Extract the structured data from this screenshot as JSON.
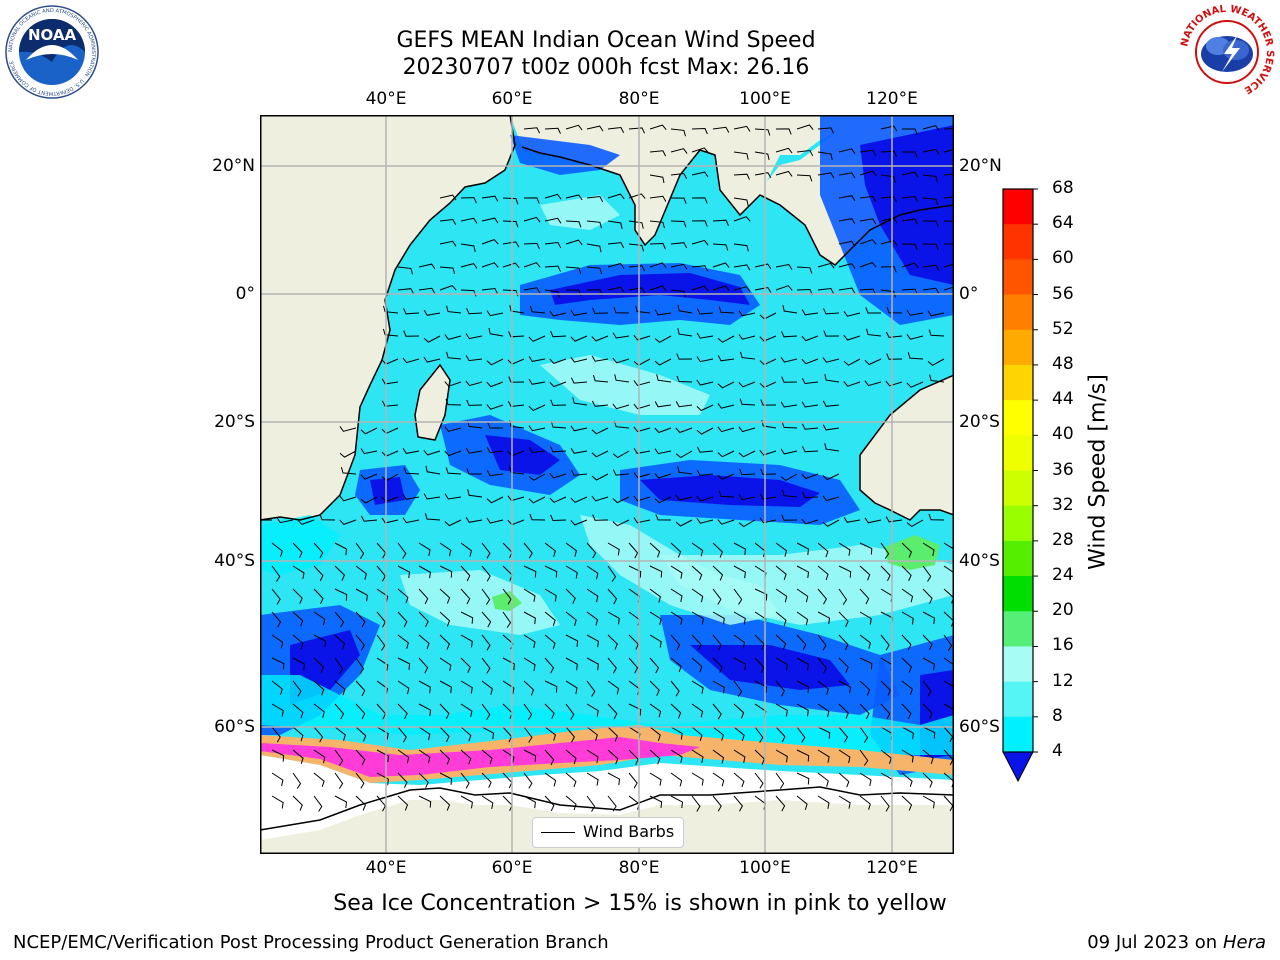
{
  "title": {
    "line1": "GEFS MEAN Indian Ocean Wind Speed",
    "line2": "20230707 t00z 000h fcst   Max: 26.16"
  },
  "map": {
    "lon_ticks": [
      "40°E",
      "60°E",
      "80°E",
      "100°E",
      "120°E"
    ],
    "lat_ticks_left": [
      "20°N",
      "0°",
      "20°S",
      "40°S",
      "60°S"
    ],
    "lat_ticks_right": [
      "20°N",
      "0°",
      "20°S",
      "40°S",
      "60°S"
    ],
    "legend_label": "Wind Barbs",
    "colors": {
      "land": "#efefdf",
      "wind_4_8": "#0a5cff",
      "wind_8_12": "#00f0ff",
      "wind_12_16": "#2ee5f4",
      "wind_16_20": "#a8fcf6",
      "wind_20_24": "#5bee6e",
      "strong_low": "#0a14e8",
      "sea_ice": "#ff3cd8",
      "sea_ice_edge": "#f6b46a",
      "grid": "#b4b4b4"
    }
  },
  "colorbar": {
    "label": "Wind Speed [m/s]",
    "ticks": [
      "68",
      "64",
      "60",
      "56",
      "52",
      "48",
      "44",
      "40",
      "36",
      "32",
      "28",
      "24",
      "20",
      "16",
      "12",
      "8",
      "4"
    ],
    "colors": [
      "#ff0000",
      "#ff3300",
      "#ff5500",
      "#ff8000",
      "#ffaa00",
      "#ffd500",
      "#ffff00",
      "#eeff00",
      "#ccff00",
      "#99ff00",
      "#55ee00",
      "#00dd00",
      "#55ee77",
      "#a8fcf6",
      "#55f5f5",
      "#00f0ff",
      "#0a5cff"
    ],
    "under_color": "#0a14e8"
  },
  "caption": "Sea Ice Concentration > 15% is shown in pink to yellow",
  "footer": {
    "left": "NCEP/EMC/Verification Post Processing Product Generation Branch",
    "date": "09 Jul 2023 on",
    "machine": "Hera"
  },
  "logos": {
    "noaa_text": "NOAA",
    "noaa_ring": "NATIONAL OCEANIC AND ATMOSPHERIC ADMINISTRATION · U.S. DEPARTMENT OF COMMERCE",
    "nws_ring": "NATIONAL WEATHER SERVICE"
  }
}
